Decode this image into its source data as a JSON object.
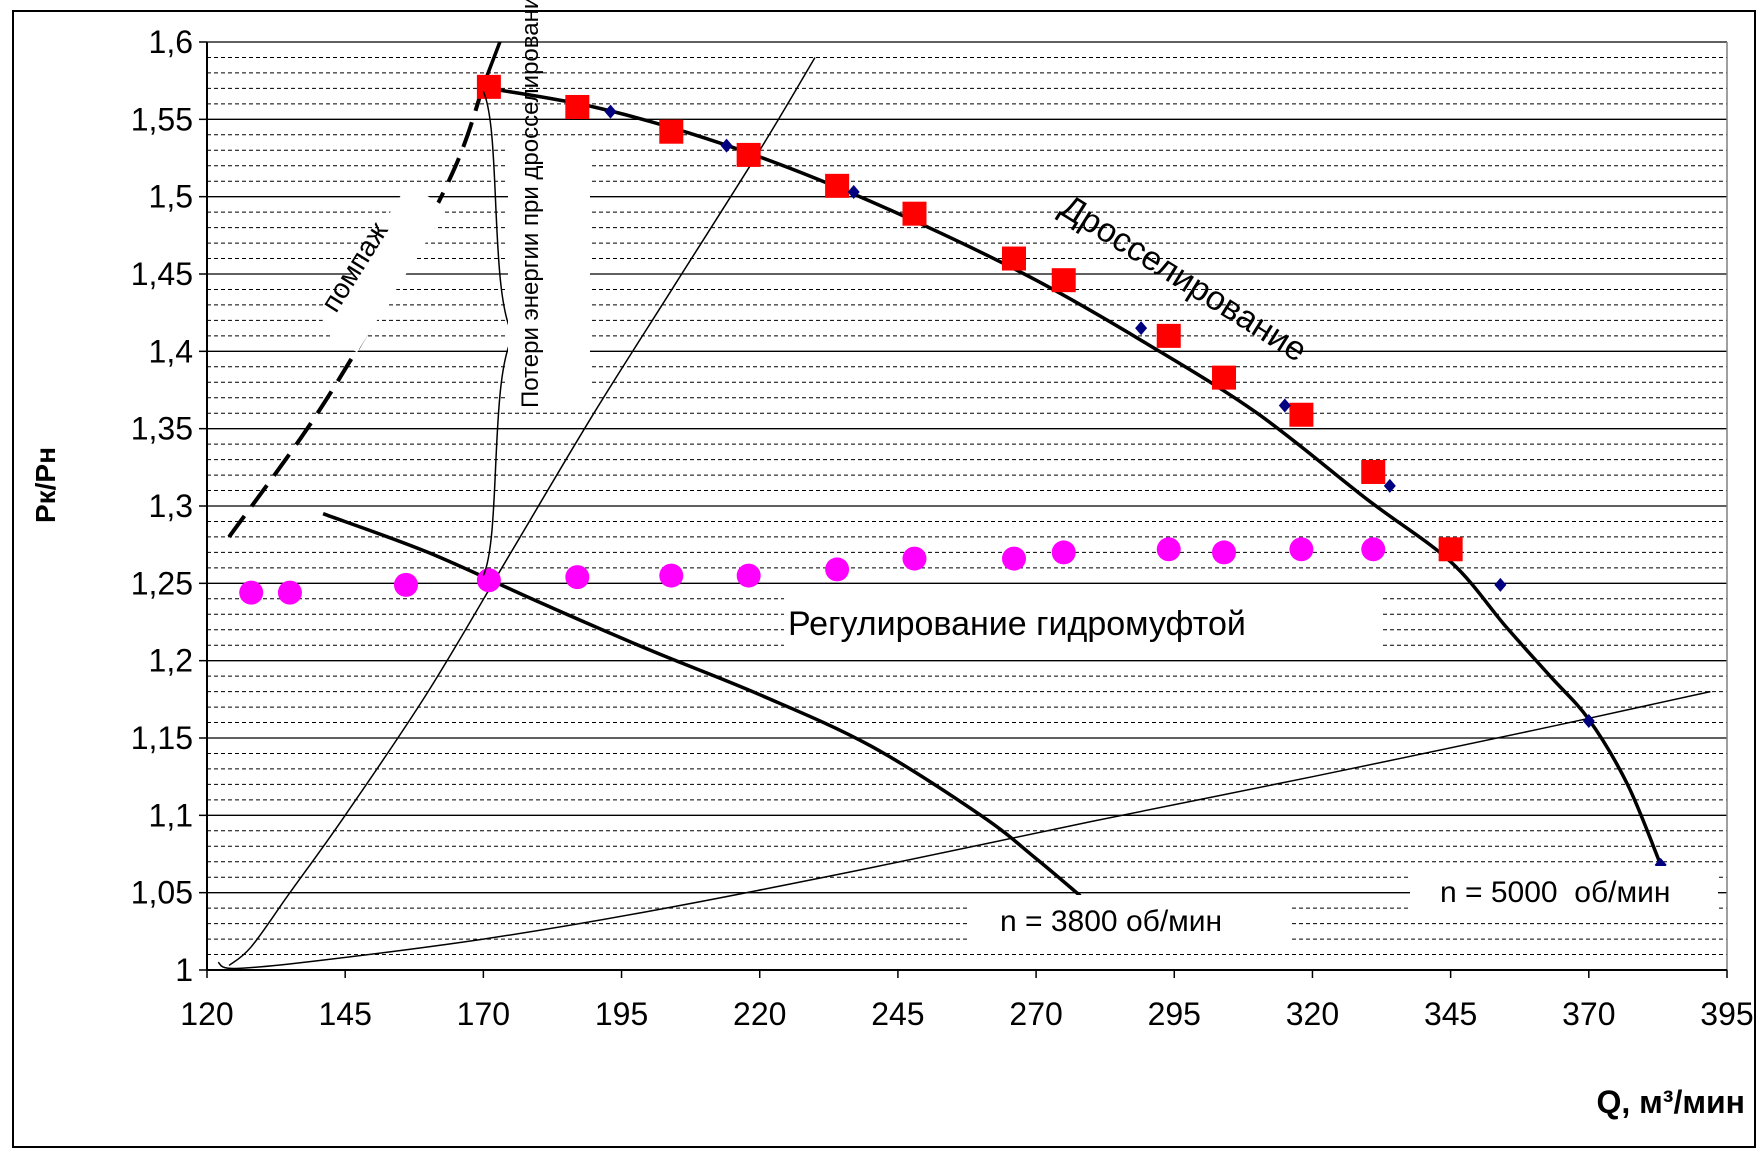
{
  "chart_data": {
    "type": "scatter",
    "xlabel": "Q,  м³/мин",
    "ylabel": "Pк/Pн",
    "xlim": [
      120,
      395
    ],
    "ylim": [
      1,
      1.6
    ],
    "x_ticks": [
      "120",
      "145",
      "170",
      "195",
      "220",
      "245",
      "270",
      "295",
      "320",
      "345",
      "370",
      "395"
    ],
    "y_ticks": [
      "1",
      "1,05",
      "1,1",
      "1,15",
      "1,2",
      "1,25",
      "1,3",
      "1,35",
      "1,4",
      "1,45",
      "1,5",
      "1,55",
      "1,6"
    ],
    "grid": "horizontal (major solid, minor dashed)",
    "series": [
      {
        "marker": "line",
        "color": "#000000",
        "x": [
          171,
          190,
          210,
          230,
          250,
          270,
          290,
          310,
          330,
          345,
          355,
          363,
          370,
          377,
          383
        ],
        "y": [
          1.57,
          1.558,
          1.538,
          1.512,
          1.481,
          1.446,
          1.405,
          1.36,
          1.304,
          1.264,
          1.222,
          1.19,
          1.162,
          1.12,
          1.068
        ]
      },
      {
        "marker": "diamond",
        "color": "#000080",
        "x": [
          193,
          214,
          237,
          289,
          315,
          334,
          354,
          370,
          383
        ],
        "y": [
          1.555,
          1.533,
          1.503,
          1.415,
          1.365,
          1.313,
          1.249,
          1.161,
          1.068
        ]
      },
      {
        "marker": "square",
        "color": "#ff0000",
        "x": [
          171,
          187,
          204,
          218,
          234,
          248,
          266,
          275,
          294,
          304,
          318,
          331,
          345
        ],
        "y": [
          1.571,
          1.558,
          1.542,
          1.527,
          1.507,
          1.489,
          1.46,
          1.446,
          1.41,
          1.383,
          1.359,
          1.322,
          1.272
        ]
      },
      {
        "marker": "circle",
        "color": "#ff00ff",
        "x": [
          128,
          135,
          156,
          171,
          187,
          204,
          218,
          234,
          248,
          266,
          275,
          294,
          304,
          318,
          331
        ],
        "y": [
          1.244,
          1.244,
          1.249,
          1.252,
          1.254,
          1.255,
          1.255,
          1.259,
          1.266,
          1.266,
          1.27,
          1.272,
          1.27,
          1.272,
          1.272
        ]
      },
      {
        "marker": "line",
        "color": "#000000",
        "x": [
          141,
          160,
          180,
          200,
          220,
          240,
          260,
          270,
          278
        ],
        "y": [
          1.295,
          1.27,
          1.238,
          1.207,
          1.178,
          1.145,
          1.1,
          1.072,
          1.048
        ]
      },
      {
        "marker": "dashed-line",
        "color": "#000000",
        "x": [
          124,
          140,
          155,
          165,
          170
        ],
        "y": [
          1.28,
          1.36,
          1.45,
          1.52,
          1.572
        ]
      },
      {
        "marker": "line",
        "color": "#000000",
        "x": [
          170,
          173
        ],
        "y": [
          1.572,
          1.6
        ]
      },
      {
        "marker": "thin-line",
        "color": "#000000",
        "x": [
          124,
          128,
          135,
          145,
          160,
          175,
          190,
          205,
          220,
          230
        ],
        "y": [
          1.003,
          1.015,
          1.05,
          1.1,
          1.18,
          1.27,
          1.36,
          1.445,
          1.53,
          1.59
        ]
      },
      {
        "marker": "thin-line",
        "color": "#000000",
        "x": [
          122,
          125,
          140,
          170,
          200,
          240,
          280,
          320,
          360,
          392
        ],
        "y": [
          1.005,
          1.001,
          1.006,
          1.02,
          1.038,
          1.066,
          1.096,
          1.125,
          1.155,
          1.18
        ]
      }
    ],
    "annotations": {
      "throttling": "Дросселирование",
      "fluid_coupling": "Регулирование гидромуфтой",
      "surge": "помпаж",
      "losses": "Потери энергии при дросселировании",
      "n5000": "n = 5000  об/мин",
      "n3800": "n = 3800 об/мин"
    }
  }
}
